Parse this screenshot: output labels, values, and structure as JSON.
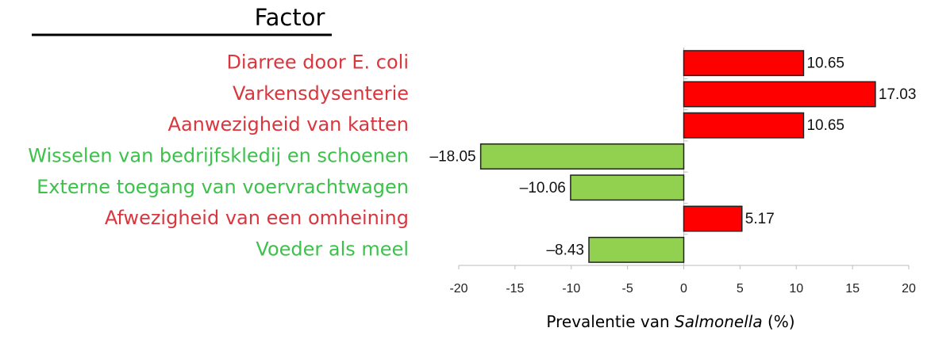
{
  "chart_data": {
    "type": "barh",
    "title": "Factor",
    "categories": [
      "Diarree door E. coli",
      "Varkensdysenterie",
      "Aanwezigheid van katten",
      "Wisselen van bedrijfskledij en schoenen",
      "Externe toegang van voervrachtwagen",
      "Afwezigheid van een omheining",
      "Voeder als meel"
    ],
    "values": [
      10.65,
      17.03,
      10.65,
      -18.05,
      -10.06,
      5.17,
      -8.43
    ],
    "value_labels": [
      "10.65",
      "17.03",
      "10.65",
      "–18.05",
      "–10.06",
      "5.17",
      "–8.43"
    ],
    "colors": [
      "#ff0000",
      "#ff0000",
      "#ff0000",
      "#92d050",
      "#92d050",
      "#ff0000",
      "#92d050"
    ],
    "label_colors": [
      "#d9363e",
      "#d9363e",
      "#d9363e",
      "#3cc24a",
      "#3cc24a",
      "#d9363e",
      "#3cc24a"
    ],
    "xlabel": [
      "Prevalentie van ",
      "Salmonella",
      " (%)"
    ],
    "xlim": [
      -20,
      20
    ],
    "xticks": [
      -20,
      -15,
      -10,
      -5,
      0,
      5,
      10,
      15,
      20
    ]
  }
}
